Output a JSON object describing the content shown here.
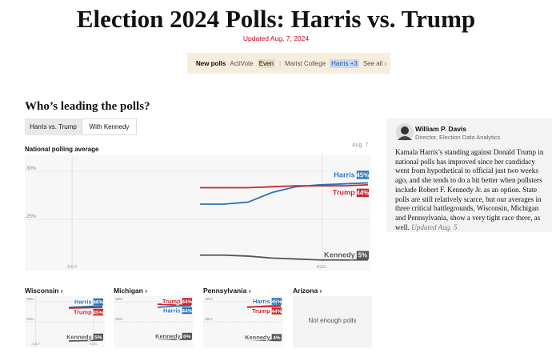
{
  "header": {
    "title": "Election 2024 Polls: Harris vs. Trump",
    "updated": "Updated Aug. 7, 2024"
  },
  "new_polls": {
    "label": "New polls",
    "items": [
      {
        "pollster": "ActiVote",
        "result": "Even"
      },
      {
        "pollster": "Marist College",
        "result": "Harris +3"
      }
    ],
    "see_all": "See all ›"
  },
  "section_title": "Who’s leading the polls?",
  "tabs": [
    "Harris vs. Trump",
    "With Kennedy"
  ],
  "main_chart": {
    "title": "National polling average",
    "date_label": "Aug. 7",
    "ylim": [
      19.7,
      31.75
    ],
    "yticks": [
      {
        "value": 30,
        "label": "30%"
      },
      {
        "value": 25,
        "label": "25%"
      }
    ],
    "x_labels": [
      "JULY",
      "AUG."
    ],
    "series": [
      {
        "name": "Harris",
        "color": "#2a73b8",
        "end_label": "45%",
        "values": [
          26.6,
          26.6,
          26.8,
          27.8,
          28.4,
          28.6,
          28.7,
          28.8
        ]
      },
      {
        "name": "Trump",
        "color": "#c9252c",
        "end_label": "44%",
        "values": [
          28.3,
          28.3,
          28.3,
          28.4,
          28.5,
          28.5,
          28.5,
          28.6
        ]
      },
      {
        "name": "Kennedy",
        "color": "#555555",
        "end_label": "5%",
        "values": [
          21.3,
          21.3,
          21.2,
          21.0,
          20.9,
          20.8,
          20.8,
          20.8
        ]
      }
    ]
  },
  "states": [
    {
      "title": "Wisconsin ›",
      "ylim": [
        18.6,
        31.4
      ],
      "yticks": [
        {
          "value": 30,
          "label": "30%"
        },
        {
          "value": 25,
          "label": "25%"
        }
      ],
      "x_labels": [
        "JULY",
        "AUG."
      ],
      "series": [
        {
          "name": "Harris",
          "color": "#2a73b8",
          "end_label": "46%",
          "values": [
            28.6,
            28.8,
            29.0
          ]
        },
        {
          "name": "Trump",
          "color": "#c9252c",
          "end_label": "45%",
          "values": [
            28.4,
            28.5,
            28.6
          ]
        },
        {
          "name": "Kennedy",
          "color": "#555555",
          "end_label": "5%",
          "values": [
            20.2,
            20.3,
            20.4
          ]
        }
      ]
    },
    {
      "title": "Michigan ›",
      "ylim": [
        18.6,
        31.4
      ],
      "yticks": [
        {
          "value": 30,
          "label": "30%"
        },
        {
          "value": 25,
          "label": "25%"
        }
      ],
      "series": [
        {
          "name": "Trump",
          "color": "#c9252c",
          "end_label": "44%",
          "values": [
            29.4,
            29.2,
            29.1
          ]
        },
        {
          "name": "Harris",
          "color": "#2a73b8",
          "end_label": "44%",
          "values": [
            28.6,
            28.9,
            29.0
          ]
        },
        {
          "name": "Kennedy",
          "color": "#555555",
          "end_label": "6%",
          "values": [
            20.8,
            20.6,
            20.6
          ]
        }
      ]
    },
    {
      "title": "Pennsylvania ›",
      "ylim": [
        18.6,
        31.4
      ],
      "yticks": [
        {
          "value": 30,
          "label": "30%"
        },
        {
          "value": 25,
          "label": "25%"
        }
      ],
      "series": [
        {
          "name": "Harris",
          "color": "#2a73b8",
          "end_label": "45%",
          "values": [
            28.6,
            28.9,
            29.1
          ]
        },
        {
          "name": "Trump",
          "color": "#c9252c",
          "end_label": "44%",
          "values": [
            28.7,
            28.8,
            28.9
          ]
        },
        {
          "name": "Kennedy",
          "color": "#555555",
          "end_label": "4%",
          "values": [
            20.6,
            20.4,
            20.3
          ]
        }
      ]
    },
    {
      "title": "Arizona ›",
      "note": "Not enough polls"
    }
  ],
  "author": {
    "name": "William P. Davis",
    "role": "Director, Election Data Analytics",
    "body": "Kamala Harris’s standing against Donald Trump in national polls has improved since her candidacy went from hypothetical to official just two weeks ago, and she tends to do a bit better when pollsters include Robert F. Kennedy Jr. as an option. State polls are still relatively scarce, but our averages in three critical battlegrounds, Wisconsin, Michigan and Pennsylvania, show a very tight race there, as well.",
    "updated": "Updated Aug. 5"
  }
}
